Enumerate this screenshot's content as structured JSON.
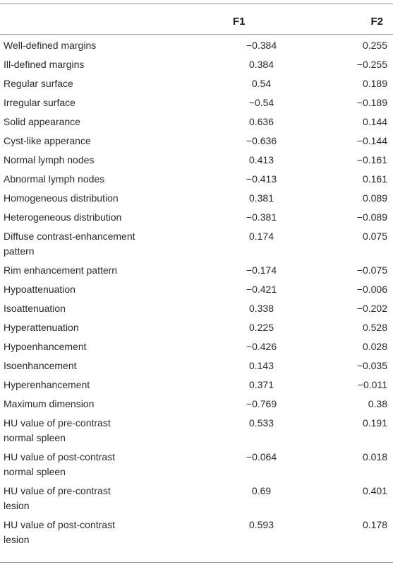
{
  "header": {
    "col_label": "",
    "col_f1": "F1",
    "col_f2": "F2"
  },
  "rows": [
    {
      "label": "Well-defined margins",
      "f1": "−0.384",
      "f2": "0.255"
    },
    {
      "label": "Ill-defined margins",
      "f1": "0.384",
      "f2": "−0.255"
    },
    {
      "label": "Regular surface",
      "f1": "0.54",
      "f2": "0.189"
    },
    {
      "label": "Irregular surface",
      "f1": "−0.54",
      "f2": "−0.189"
    },
    {
      "label": "Solid appearance",
      "f1": "0.636",
      "f2": "0.144"
    },
    {
      "label": "Cyst-like apperance",
      "f1": "−0.636",
      "f2": "−0.144"
    },
    {
      "label": "Normal lymph nodes",
      "f1": "0.413",
      "f2": "−0.161"
    },
    {
      "label": "Abnormal lymph nodes",
      "f1": "−0.413",
      "f2": "0.161"
    },
    {
      "label": "Homogeneous distribution",
      "f1": "0.381",
      "f2": "0.089"
    },
    {
      "label": "Heterogeneous distribution",
      "f1": "−0.381",
      "f2": "−0.089"
    },
    {
      "label": "Diffuse contrast-enhancement pattern",
      "f1": "0.174",
      "f2": "0.075"
    },
    {
      "label": "Rim enhancement pattern",
      "f1": "−0.174",
      "f2": "−0.075"
    },
    {
      "label": "Hypoattenuation",
      "f1": "−0.421",
      "f2": "−0.006"
    },
    {
      "label": "Isoattenuation",
      "f1": "0.338",
      "f2": "−0.202"
    },
    {
      "label": "Hyperattenuation",
      "f1": "0.225",
      "f2": "0.528"
    },
    {
      "label": "Hypoenhancement",
      "f1": "−0.426",
      "f2": "0.028"
    },
    {
      "label": "Isoenhancement",
      "f1": "0.143",
      "f2": "−0.035"
    },
    {
      "label": "Hyperenhancement",
      "f1": "0.371",
      "f2": "−0.011"
    },
    {
      "label": "Maximum dimension",
      "f1": "−0.769",
      "f2": "0.38"
    },
    {
      "label": "HU value of pre-contrast normal spleen",
      "f1": "0.533",
      "f2": "0.191"
    },
    {
      "label": "HU value of post-contrast normal spleen",
      "f1": "−0.064",
      "f2": "0.018"
    },
    {
      "label": "HU value of pre-contrast lesion",
      "f1": "0.69",
      "f2": "0.401"
    },
    {
      "label": "HU value of post-contrast lesion",
      "f1": "0.593",
      "f2": "0.178"
    }
  ]
}
